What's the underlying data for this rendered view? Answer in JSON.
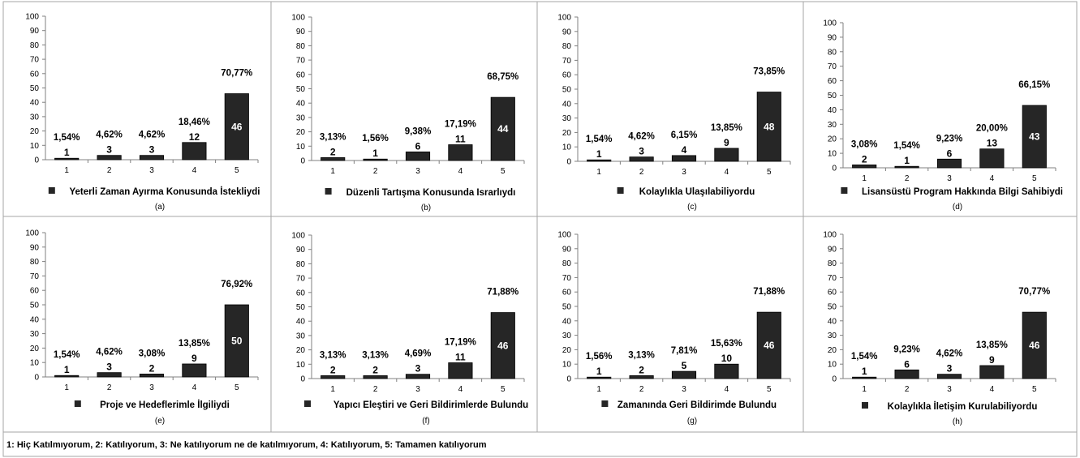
{
  "footer_text": "1: Hiç Katılmıyorum,  2: Katılıyorum, 3: Ne katılıyorum ne de katılmıyorum, 4: Katılıyorum, 5: Tamamen katılıyorum",
  "chart_data": [
    {
      "type": "bar",
      "categories": [
        "1",
        "2",
        "3",
        "4",
        "5"
      ],
      "values": [
        1,
        3,
        3,
        12,
        46
      ],
      "percent_labels": [
        "1,54%",
        "4,62%",
        "4,62%",
        "18,46%",
        "70,77%"
      ],
      "yticks": [
        0,
        10,
        20,
        30,
        40,
        50,
        60,
        70,
        80,
        90,
        100
      ],
      "ylim": [
        0,
        100
      ],
      "legend": "Yeterli Zaman Ayırma Konusunda İstekliydi",
      "sublabel": "(a)",
      "grid": false,
      "legend_placement": "bottom",
      "bar_color": "#262626"
    },
    {
      "type": "bar",
      "categories": [
        "1",
        "2",
        "3",
        "4",
        "5"
      ],
      "values": [
        2,
        1,
        6,
        11,
        44
      ],
      "percent_labels": [
        "3,13%",
        "1,56%",
        "9,38%",
        "17,19%",
        "68,75%"
      ],
      "yticks": [
        0,
        10,
        20,
        30,
        40,
        50,
        60,
        70,
        80,
        90,
        100
      ],
      "ylim": [
        0,
        100
      ],
      "legend": "Düzenli Tartışma Konusunda Israrlıydı",
      "sublabel": "(b)",
      "grid": false,
      "legend_placement": "bottom",
      "bar_color": "#262626"
    },
    {
      "type": "bar",
      "categories": [
        "1",
        "2",
        "3",
        "4",
        "5"
      ],
      "values": [
        1,
        3,
        4,
        9,
        48
      ],
      "percent_labels": [
        "1,54%",
        "4,62%",
        "6,15%",
        "13,85%",
        "73,85%"
      ],
      "yticks": [
        0,
        10,
        20,
        30,
        40,
        50,
        60,
        70,
        80,
        90,
        100
      ],
      "ylim": [
        0,
        100
      ],
      "legend": "Kolaylıkla Ulaşılabiliyordu",
      "sublabel": "(c)",
      "grid": false,
      "legend_placement": "bottom",
      "bar_color": "#262626"
    },
    {
      "type": "bar",
      "categories": [
        "1",
        "2",
        "3",
        "4",
        "5"
      ],
      "values": [
        2,
        1,
        6,
        13,
        43
      ],
      "percent_labels": [
        "3,08%",
        "1,54%",
        "9,23%",
        "20,00%",
        "66,15%"
      ],
      "yticks": [
        0,
        10,
        20,
        30,
        40,
        50,
        60,
        70,
        80,
        90,
        100
      ],
      "ylim": [
        0,
        100
      ],
      "legend": "Lisansüstü Program Hakkında Bilgi Sahibiydi",
      "sublabel": "(d)",
      "grid": false,
      "legend_placement": "bottom",
      "bar_color": "#262626"
    },
    {
      "type": "bar",
      "categories": [
        "1",
        "2",
        "3",
        "4",
        "5"
      ],
      "values": [
        1,
        3,
        2,
        9,
        50
      ],
      "percent_labels": [
        "1,54%",
        "4,62%",
        "3,08%",
        "13,85%",
        "76,92%"
      ],
      "yticks": [
        0,
        10,
        20,
        30,
        40,
        50,
        60,
        70,
        80,
        90,
        100
      ],
      "ylim": [
        0,
        100
      ],
      "legend": "Proje ve Hedeflerimle İlgiliydi",
      "sublabel": "(e)",
      "grid": false,
      "legend_placement": "bottom",
      "bar_color": "#262626"
    },
    {
      "type": "bar",
      "categories": [
        "1",
        "2",
        "3",
        "4",
        "5"
      ],
      "values": [
        2,
        2,
        3,
        11,
        46
      ],
      "percent_labels": [
        "3,13%",
        "3,13%",
        "4,69%",
        "17,19%",
        "71,88%"
      ],
      "yticks": [
        0,
        10,
        20,
        30,
        40,
        50,
        60,
        70,
        80,
        90,
        100
      ],
      "ylim": [
        0,
        100
      ],
      "legend": "Yapıcı Eleştiri ve Geri Bildirimlerde Bulundu",
      "sublabel": "(f)",
      "grid": false,
      "legend_placement": "bottom",
      "bar_color": "#262626"
    },
    {
      "type": "bar",
      "categories": [
        "1",
        "2",
        "3",
        "4",
        "5"
      ],
      "values": [
        1,
        2,
        5,
        10,
        46
      ],
      "percent_labels": [
        "1,56%",
        "3,13%",
        "7,81%",
        "15,63%",
        "71,88%"
      ],
      "yticks": [
        0,
        10,
        20,
        30,
        40,
        50,
        60,
        70,
        80,
        90,
        100
      ],
      "ylim": [
        0,
        100
      ],
      "legend": "Zamanında Geri Bildirimde Bulundu",
      "sublabel": "(g)",
      "grid": false,
      "legend_placement": "bottom",
      "bar_color": "#262626"
    },
    {
      "type": "bar",
      "categories": [
        "1",
        "2",
        "3",
        "4",
        "5"
      ],
      "values": [
        1,
        6,
        3,
        9,
        46
      ],
      "percent_labels": [
        "1,54%",
        "9,23%",
        "4,62%",
        "13,85%",
        "70,77%"
      ],
      "yticks": [
        0,
        10,
        20,
        30,
        40,
        50,
        60,
        70,
        80,
        90,
        100
      ],
      "ylim": [
        0,
        100
      ],
      "legend": "Kolaylıkla İletişim Kurulabiliyordu",
      "sublabel": "(h)",
      "grid": false,
      "legend_placement": "bottom",
      "bar_color": "#262626"
    }
  ]
}
